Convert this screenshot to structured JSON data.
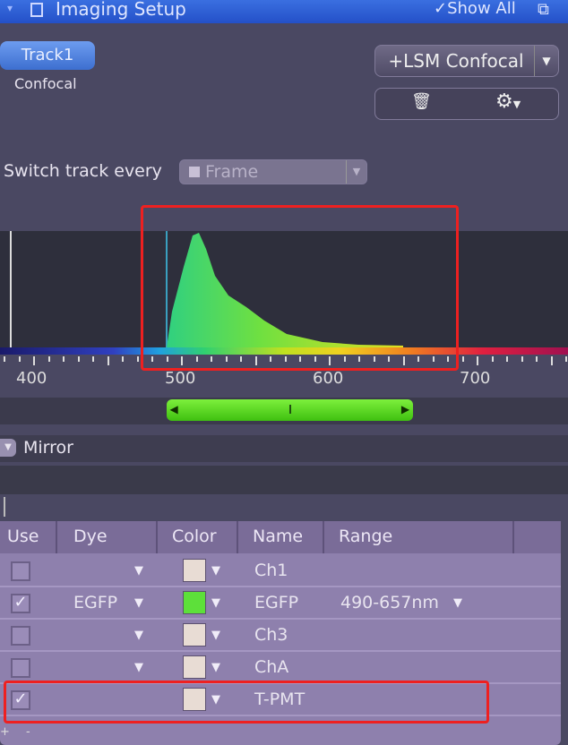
{
  "window": {
    "title": "Imaging Setup",
    "show_all": "Show All"
  },
  "track": {
    "label": "Track1",
    "mode": "Confocal"
  },
  "add_button": "+LSM Confocal",
  "switch": {
    "label": "Switch track every",
    "value": "Frame"
  },
  "spectrum": {
    "axis_ticks": [
      "400",
      "500",
      "600",
      "700"
    ],
    "detection_range_nm": [
      490,
      657
    ],
    "dye_peak_nm": 510
  },
  "mirror": "Mirror",
  "table": {
    "headers": [
      "Use",
      "Dye",
      "Color",
      "Name",
      "Range"
    ],
    "rows": [
      {
        "use": false,
        "dye": "",
        "color": "#e8dcd4",
        "name": "Ch1",
        "range": ""
      },
      {
        "use": true,
        "dye": "EGFP",
        "color": "#5de03a",
        "name": "EGFP",
        "range": "490-657nm"
      },
      {
        "use": false,
        "dye": "",
        "color": "#e8dcd4",
        "name": "Ch3",
        "range": ""
      },
      {
        "use": false,
        "dye": "",
        "color": "#e8dcd4",
        "name": "ChA",
        "range": ""
      },
      {
        "use": true,
        "dye": "",
        "color": "#e8dcd4",
        "name": "T-PMT",
        "range": ""
      }
    ]
  },
  "highlight_color": "#ee2020"
}
